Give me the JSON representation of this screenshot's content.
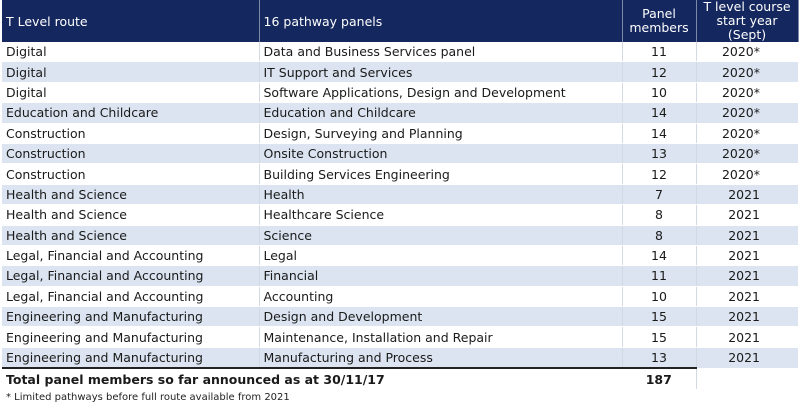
{
  "headers": {
    "route": "T Level route",
    "panels": "16 pathway panels",
    "members_line1": "Panel",
    "members_line2": "members",
    "start_line1": "T level course",
    "start_line2": "start year (Sept)"
  },
  "rows": [
    {
      "route": "Digital",
      "panel": "Data and Business Services panel",
      "members": "11",
      "start": "2020*"
    },
    {
      "route": "Digital",
      "panel": "IT Support and Services",
      "members": "12",
      "start": "2020*"
    },
    {
      "route": "Digital",
      "panel": "Software Applications, Design and Development",
      "members": "10",
      "start": "2020*"
    },
    {
      "route": "Education and Childcare",
      "panel": "Education and Childcare",
      "members": "14",
      "start": "2020*"
    },
    {
      "route": "Construction",
      "panel": "Design, Surveying and Planning",
      "members": "14",
      "start": "2020*"
    },
    {
      "route": "Construction",
      "panel": "Onsite Construction",
      "members": "13",
      "start": "2020*"
    },
    {
      "route": "Construction",
      "panel": "Building Services Engineering",
      "members": "12",
      "start": "2020*"
    },
    {
      "route": "Health and Science",
      "panel": "Health",
      "members": "7",
      "start": "2021"
    },
    {
      "route": "Health and Science",
      "panel": "Healthcare Science",
      "members": "8",
      "start": "2021"
    },
    {
      "route": "Health and Science",
      "panel": "Science",
      "members": "8",
      "start": "2021"
    },
    {
      "route": "Legal, Financial and Accounting",
      "panel": "Legal",
      "members": "14",
      "start": "2021"
    },
    {
      "route": "Legal, Financial and Accounting",
      "panel": "Financial",
      "members": "11",
      "start": "2021"
    },
    {
      "route": "Legal, Financial and Accounting",
      "panel": "Accounting",
      "members": "10",
      "start": "2021"
    },
    {
      "route": "Engineering and Manufacturing",
      "panel": "Design and Development",
      "members": "15",
      "start": "2021"
    },
    {
      "route": "Engineering and Manufacturing",
      "panel": "Maintenance, Installation and Repair",
      "members": "15",
      "start": "2021"
    },
    {
      "route": "Engineering and Manufacturing",
      "panel": "Manufacturing and Process",
      "members": "13",
      "start": "2021"
    }
  ],
  "total": {
    "label": "Total panel members so far announced as at 30/11/17",
    "value": "187"
  },
  "footnote": "* Limited pathways before full route available from 2021",
  "colors": {
    "header_bg": "#14275e",
    "stripe": "#dbe4f0"
  }
}
